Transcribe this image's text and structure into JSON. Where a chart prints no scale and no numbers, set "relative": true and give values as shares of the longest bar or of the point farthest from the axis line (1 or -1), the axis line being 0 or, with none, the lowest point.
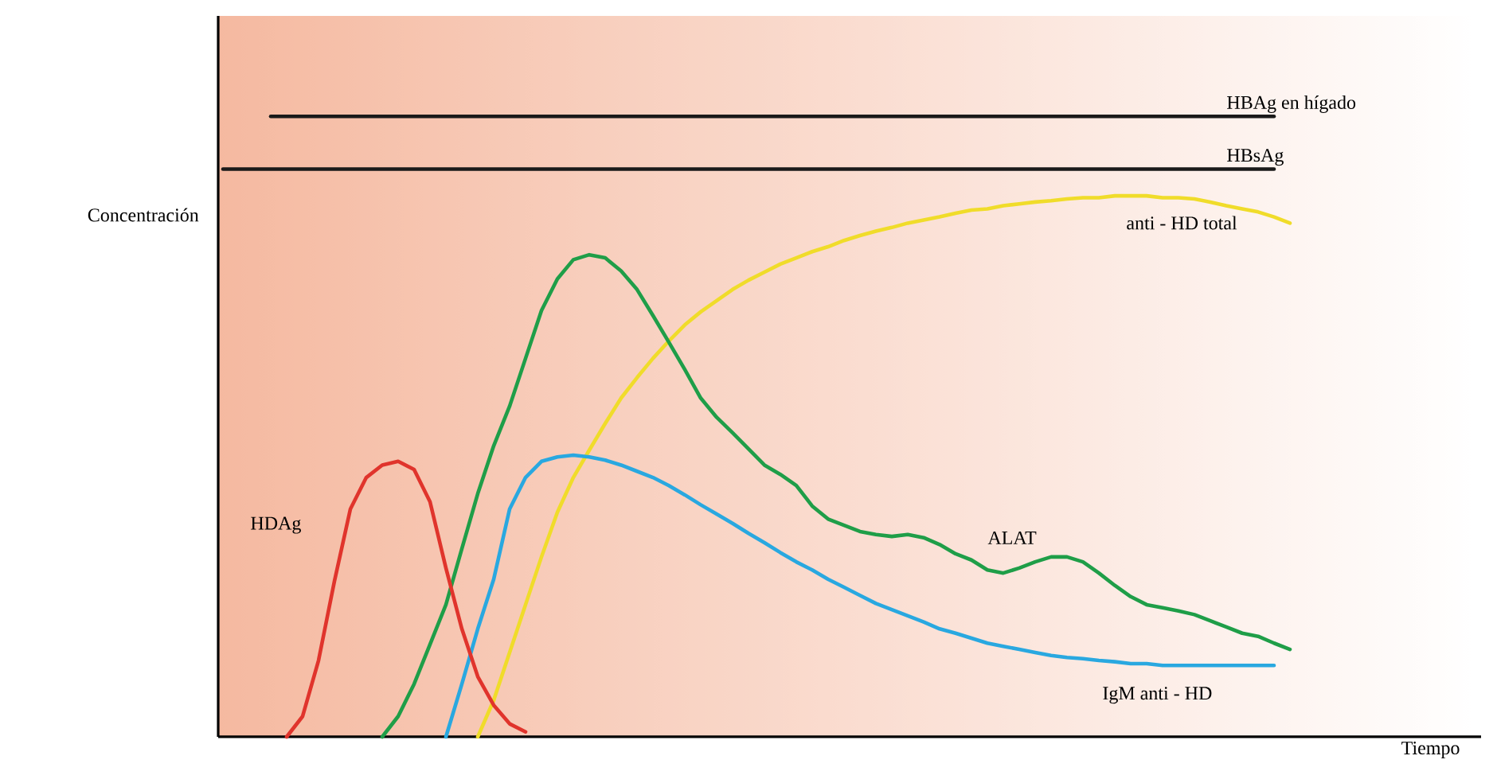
{
  "chart_data": {
    "type": "line",
    "relative": true,
    "xlabel": "Tiempo",
    "ylabel": "Concentración",
    "categories": [
      null,
      null,
      null,
      null,
      null,
      null,
      null,
      null,
      null,
      null,
      null,
      null,
      null,
      null,
      null,
      null,
      null,
      null,
      null,
      null,
      null,
      null,
      null,
      null,
      null,
      null,
      null,
      null,
      null,
      null,
      null,
      null,
      null,
      null,
      null,
      null,
      null,
      null,
      null,
      null,
      null,
      null,
      null,
      null,
      null,
      null,
      null,
      null,
      null,
      null,
      null,
      null,
      null,
      null,
      null,
      null,
      null,
      null,
      null,
      null,
      null,
      null,
      null,
      null,
      null,
      null,
      null,
      null,
      null
    ],
    "series": [
      {
        "name": "HBAg en hígado",
        "color": "#1a1a1a",
        "values": [
          null,
          null,
          null,
          1,
          1,
          1,
          1,
          1,
          1,
          1,
          1,
          1,
          1,
          1,
          1,
          1,
          1,
          1,
          1,
          1,
          1,
          1,
          1,
          1,
          1,
          1,
          1,
          1,
          1,
          1,
          1,
          1,
          1,
          1,
          1,
          1,
          1,
          1,
          1,
          1,
          1,
          1,
          1,
          1,
          1,
          1,
          1,
          1,
          1,
          1,
          1,
          1,
          1,
          1,
          1,
          1,
          1,
          1,
          1,
          1,
          1,
          1,
          1,
          1,
          1,
          1,
          1,
          null,
          null
        ]
      },
      {
        "name": "HBsAg",
        "color": "#1a1a1a",
        "values": [
          0.915,
          0.915,
          0.915,
          0.915,
          0.915,
          0.915,
          0.915,
          0.915,
          0.915,
          0.915,
          0.915,
          0.915,
          0.915,
          0.915,
          0.915,
          0.915,
          0.915,
          0.915,
          0.915,
          0.915,
          0.915,
          0.915,
          0.915,
          0.915,
          0.915,
          0.915,
          0.915,
          0.915,
          0.915,
          0.915,
          0.915,
          0.915,
          0.915,
          0.915,
          0.915,
          0.915,
          0.915,
          0.915,
          0.915,
          0.915,
          0.915,
          0.915,
          0.915,
          0.915,
          0.915,
          0.915,
          0.915,
          0.915,
          0.915,
          0.915,
          0.915,
          0.915,
          0.915,
          0.915,
          0.915,
          0.915,
          0.915,
          0.915,
          0.915,
          0.915,
          0.915,
          0.915,
          0.915,
          0.915,
          0.915,
          0.915,
          0.915,
          null,
          null
        ]
      },
      {
        "name": "anti - HD total",
        "color": "#f0dc2a",
        "values": [
          null,
          null,
          null,
          null,
          null,
          null,
          null,
          null,
          null,
          null,
          null,
          null,
          null,
          null,
          null,
          null,
          0,
          0.059,
          0.136,
          0.213,
          0.29,
          0.362,
          0.418,
          0.462,
          0.505,
          0.546,
          0.579,
          0.61,
          0.638,
          0.664,
          0.685,
          0.703,
          0.721,
          0.736,
          0.749,
          0.762,
          0.772,
          0.782,
          0.79,
          0.8,
          0.808,
          0.815,
          0.821,
          0.828,
          0.833,
          0.838,
          0.844,
          0.849,
          0.851,
          0.856,
          0.859,
          0.862,
          0.864,
          0.867,
          0.869,
          0.869,
          0.872,
          0.872,
          0.872,
          0.869,
          0.869,
          0.867,
          0.862,
          0.856,
          0.851,
          0.846,
          0.838,
          0.828,
          null
        ]
      },
      {
        "name": "ALAT",
        "color": "#1f9e48",
        "values": [
          null,
          null,
          null,
          null,
          null,
          null,
          null,
          null,
          null,
          null,
          0,
          0.033,
          0.085,
          0.149,
          0.213,
          0.303,
          0.392,
          0.469,
          0.533,
          0.61,
          0.687,
          0.738,
          0.769,
          0.777,
          0.772,
          0.751,
          0.721,
          0.679,
          0.636,
          0.592,
          0.546,
          0.515,
          0.49,
          0.464,
          0.438,
          0.423,
          0.405,
          0.372,
          0.351,
          0.341,
          0.331,
          0.326,
          0.323,
          0.326,
          0.321,
          0.31,
          0.295,
          0.285,
          0.269,
          0.264,
          0.272,
          0.282,
          0.29,
          0.29,
          0.282,
          0.264,
          0.244,
          0.226,
          0.213,
          0.208,
          0.203,
          0.197,
          0.187,
          0.177,
          0.167,
          0.162,
          0.151,
          0.141,
          null
        ]
      },
      {
        "name": "IgM  anti - HD",
        "color": "#29a8e0",
        "values": [
          null,
          null,
          null,
          null,
          null,
          null,
          null,
          null,
          null,
          null,
          null,
          null,
          null,
          null,
          0,
          0.085,
          0.174,
          0.254,
          0.367,
          0.418,
          0.444,
          0.451,
          0.454,
          0.451,
          0.446,
          0.438,
          0.428,
          0.418,
          0.405,
          0.39,
          0.374,
          0.359,
          0.344,
          0.328,
          0.313,
          0.297,
          0.282,
          0.269,
          0.254,
          0.241,
          0.228,
          0.215,
          0.205,
          0.195,
          0.185,
          0.174,
          0.167,
          0.159,
          0.151,
          0.146,
          0.141,
          0.136,
          0.131,
          0.128,
          0.126,
          0.123,
          0.121,
          0.118,
          0.118,
          0.115,
          0.115,
          0.115,
          0.115,
          0.115,
          0.115,
          0.115,
          0.115,
          null,
          null
        ]
      },
      {
        "name": "HDAg",
        "color": "#e0342c",
        "values": [
          null,
          null,
          null,
          null,
          0,
          0.033,
          0.123,
          0.251,
          0.367,
          0.418,
          0.438,
          0.444,
          0.431,
          0.379,
          0.272,
          0.174,
          0.097,
          0.051,
          0.021,
          0.008,
          null,
          null,
          null,
          null,
          null,
          null,
          null,
          null,
          null,
          null,
          null,
          null,
          null,
          null,
          null,
          null,
          null,
          null,
          null,
          null,
          null,
          null,
          null,
          null,
          null,
          null,
          null,
          null,
          null,
          null,
          null,
          null,
          null,
          null,
          null,
          null,
          null,
          null,
          null,
          null,
          null,
          null,
          null,
          null,
          null,
          null,
          null,
          null,
          null
        ]
      }
    ]
  }
}
